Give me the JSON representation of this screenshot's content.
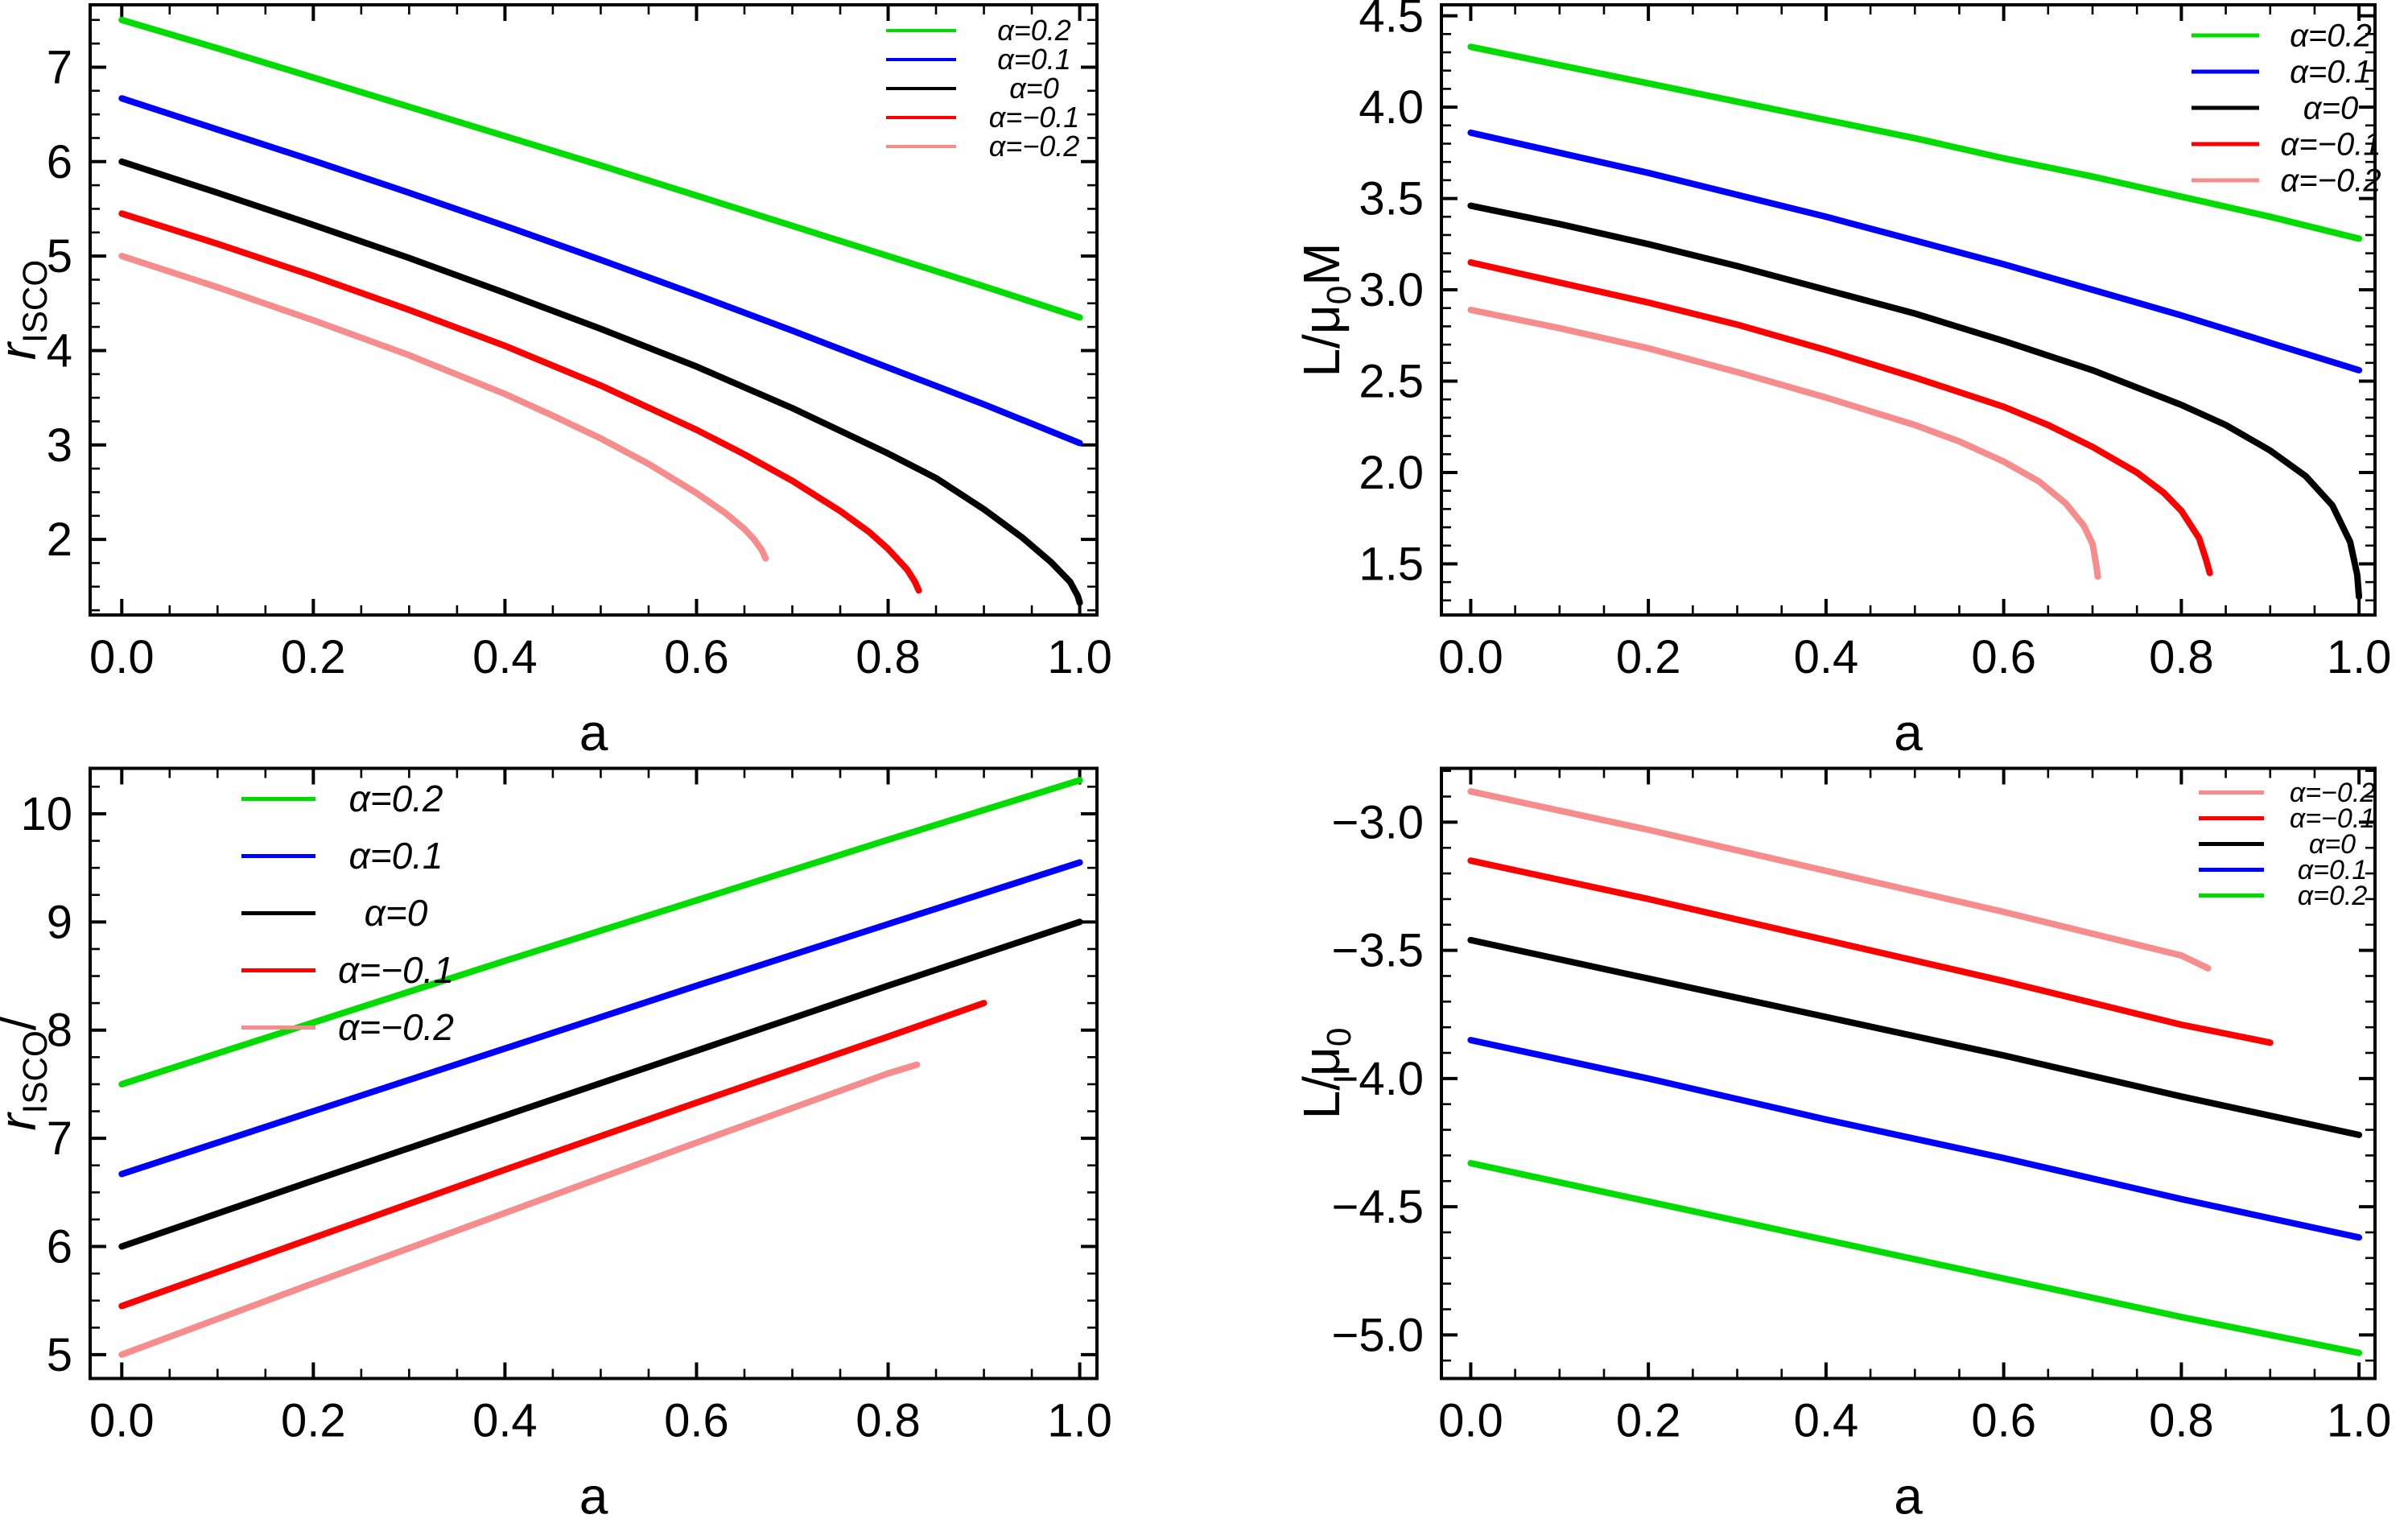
{
  "figure": {
    "background": "#ffffff",
    "frame_color": "#000000",
    "series_colors": {
      "alpha_plus_02": "#00dc00",
      "alpha_plus_01": "#0000ff",
      "alpha_zero": "#000000",
      "alpha_minus_01": "#fe0000",
      "alpha_minus_02": "#f68c8c"
    }
  },
  "chart_data": [
    {
      "id": "tl",
      "type": "line",
      "title": "",
      "xlabel": "a",
      "ylabel_segments": [
        {
          "t": "r",
          "it": true
        },
        {
          "t": "ISCO",
          "sub": true
        }
      ],
      "xlim": [
        -0.033,
        1.018
      ],
      "ylim": [
        1.2,
        7.66
      ],
      "grid": false,
      "xticks": [
        0,
        0.2,
        0.4,
        0.6,
        0.8,
        1.0
      ],
      "xtick_labels": [
        "0.0",
        "0.2",
        "0.4",
        "0.6",
        "0.8",
        "1.0"
      ],
      "yticks": [
        2,
        3,
        4,
        5,
        6,
        7
      ],
      "ytick_labels": [
        "2",
        "3",
        "4",
        "5",
        "6",
        "7"
      ],
      "x_minor_step": 0.05,
      "y_minor_step": 0.25,
      "legend": {
        "position": "top-right"
      },
      "series": [
        {
          "name": "α=0.2",
          "color": "#00dc00",
          "points": [
            [
              0,
              7.5
            ],
            [
              0.1,
              7.2
            ],
            [
              0.2,
              6.89
            ],
            [
              0.3,
              6.58
            ],
            [
              0.4,
              6.27
            ],
            [
              0.5,
              5.96
            ],
            [
              0.6,
              5.64
            ],
            [
              0.7,
              5.32
            ],
            [
              0.8,
              5.0
            ],
            [
              0.9,
              4.68
            ],
            [
              1.0,
              4.35
            ]
          ]
        },
        {
          "name": "α=0.1",
          "color": "#0000ff",
          "points": [
            [
              0,
              6.67
            ],
            [
              0.1,
              6.34
            ],
            [
              0.2,
              6.01
            ],
            [
              0.3,
              5.67
            ],
            [
              0.4,
              5.32
            ],
            [
              0.5,
              4.96
            ],
            [
              0.6,
              4.59
            ],
            [
              0.7,
              4.21
            ],
            [
              0.8,
              3.82
            ],
            [
              0.9,
              3.43
            ],
            [
              1.0,
              3.02
            ]
          ]
        },
        {
          "name": "α=0",
          "color": "#000000",
          "points": [
            [
              0,
              6.0
            ],
            [
              0.1,
              5.67
            ],
            [
              0.2,
              5.33
            ],
            [
              0.3,
              4.98
            ],
            [
              0.4,
              4.61
            ],
            [
              0.5,
              4.23
            ],
            [
              0.6,
              3.83
            ],
            [
              0.7,
              3.39
            ],
            [
              0.8,
              2.91
            ],
            [
              0.85,
              2.65
            ],
            [
              0.9,
              2.32
            ],
            [
              0.94,
              2.02
            ],
            [
              0.97,
              1.76
            ],
            [
              0.99,
              1.55
            ],
            [
              0.998,
              1.4
            ],
            [
              1.0,
              1.33
            ]
          ]
        },
        {
          "name": "α=−0.1",
          "color": "#fe0000",
          "points": [
            [
              0,
              5.45
            ],
            [
              0.1,
              5.13
            ],
            [
              0.2,
              4.79
            ],
            [
              0.3,
              4.43
            ],
            [
              0.4,
              4.05
            ],
            [
              0.5,
              3.63
            ],
            [
              0.6,
              3.16
            ],
            [
              0.65,
              2.9
            ],
            [
              0.7,
              2.62
            ],
            [
              0.75,
              2.3
            ],
            [
              0.78,
              2.08
            ],
            [
              0.8,
              1.9
            ],
            [
              0.82,
              1.68
            ],
            [
              0.828,
              1.55
            ],
            [
              0.832,
              1.46
            ]
          ]
        },
        {
          "name": "α=−0.2",
          "color": "#f68c8c",
          "points": [
            [
              0,
              5.0
            ],
            [
              0.1,
              4.67
            ],
            [
              0.2,
              4.32
            ],
            [
              0.3,
              3.95
            ],
            [
              0.4,
              3.54
            ],
            [
              0.45,
              3.31
            ],
            [
              0.5,
              3.07
            ],
            [
              0.55,
              2.8
            ],
            [
              0.6,
              2.49
            ],
            [
              0.63,
              2.28
            ],
            [
              0.65,
              2.11
            ],
            [
              0.66,
              2.0
            ],
            [
              0.668,
              1.89
            ],
            [
              0.672,
              1.8
            ]
          ]
        }
      ]
    },
    {
      "id": "tr",
      "type": "line",
      "title": "",
      "xlabel": "a",
      "ylabel_segments": [
        {
          "t": "L/μ"
        },
        {
          "t": "0",
          "sub": true
        },
        {
          "t": "M"
        }
      ],
      "xlim": [
        -0.033,
        1.018
      ],
      "ylim": [
        1.22,
        4.56
      ],
      "grid": false,
      "xticks": [
        0,
        0.2,
        0.4,
        0.6,
        0.8,
        1.0
      ],
      "xtick_labels": [
        "0.0",
        "0.2",
        "0.4",
        "0.6",
        "0.8",
        "1.0"
      ],
      "yticks": [
        1.5,
        2.0,
        2.5,
        3.0,
        3.5,
        4.0,
        4.5
      ],
      "ytick_labels": [
        "1.5",
        "2.0",
        "2.5",
        "3.0",
        "3.5",
        "4.0",
        "4.5"
      ],
      "x_minor_step": 0.05,
      "y_minor_step": 0.1,
      "legend": {
        "position": "top-right"
      },
      "series": [
        {
          "name": "α=0.2",
          "color": "#00dc00",
          "points": [
            [
              0,
              4.33
            ],
            [
              0.1,
              4.23
            ],
            [
              0.2,
              4.13
            ],
            [
              0.3,
              4.03
            ],
            [
              0.4,
              3.93
            ],
            [
              0.5,
              3.83
            ],
            [
              0.6,
              3.72
            ],
            [
              0.7,
              3.62
            ],
            [
              0.8,
              3.51
            ],
            [
              0.9,
              3.4
            ],
            [
              1.0,
              3.28
            ]
          ]
        },
        {
          "name": "α=0.1",
          "color": "#0000ff",
          "points": [
            [
              0,
              3.86
            ],
            [
              0.1,
              3.75
            ],
            [
              0.2,
              3.64
            ],
            [
              0.3,
              3.52
            ],
            [
              0.4,
              3.4
            ],
            [
              0.5,
              3.27
            ],
            [
              0.6,
              3.14
            ],
            [
              0.7,
              3.0
            ],
            [
              0.8,
              2.86
            ],
            [
              0.9,
              2.71
            ],
            [
              1.0,
              2.56
            ]
          ]
        },
        {
          "name": "α=0",
          "color": "#000000",
          "points": [
            [
              0,
              3.46
            ],
            [
              0.1,
              3.36
            ],
            [
              0.2,
              3.25
            ],
            [
              0.3,
              3.13
            ],
            [
              0.4,
              3.0
            ],
            [
              0.5,
              2.87
            ],
            [
              0.6,
              2.72
            ],
            [
              0.7,
              2.56
            ],
            [
              0.8,
              2.37
            ],
            [
              0.85,
              2.26
            ],
            [
              0.9,
              2.12
            ],
            [
              0.94,
              1.98
            ],
            [
              0.97,
              1.82
            ],
            [
              0.99,
              1.62
            ],
            [
              0.998,
              1.44
            ],
            [
              1.0,
              1.32
            ]
          ]
        },
        {
          "name": "α=−0.1",
          "color": "#fe0000",
          "points": [
            [
              0,
              3.15
            ],
            [
              0.1,
              3.04
            ],
            [
              0.2,
              2.93
            ],
            [
              0.3,
              2.81
            ],
            [
              0.4,
              2.67
            ],
            [
              0.5,
              2.52
            ],
            [
              0.6,
              2.36
            ],
            [
              0.65,
              2.26
            ],
            [
              0.7,
              2.14
            ],
            [
              0.75,
              2.0
            ],
            [
              0.78,
              1.89
            ],
            [
              0.8,
              1.79
            ],
            [
              0.82,
              1.64
            ],
            [
              0.828,
              1.52
            ],
            [
              0.832,
              1.45
            ]
          ]
        },
        {
          "name": "α=−0.2",
          "color": "#f68c8c",
          "points": [
            [
              0,
              2.89
            ],
            [
              0.1,
              2.79
            ],
            [
              0.2,
              2.68
            ],
            [
              0.3,
              2.55
            ],
            [
              0.4,
              2.41
            ],
            [
              0.5,
              2.26
            ],
            [
              0.55,
              2.17
            ],
            [
              0.6,
              2.06
            ],
            [
              0.64,
              1.95
            ],
            [
              0.67,
              1.83
            ],
            [
              0.69,
              1.71
            ],
            [
              0.7,
              1.61
            ],
            [
              0.704,
              1.5
            ],
            [
              0.706,
              1.43
            ]
          ]
        }
      ]
    },
    {
      "id": "bl",
      "type": "line",
      "title": "",
      "xlabel": "a",
      "ylabel_segments": [
        {
          "t": "r",
          "it": true
        },
        {
          "t": "ISCO",
          "sub": true
        },
        {
          "t": "/"
        }
      ],
      "xlim": [
        -0.033,
        1.018
      ],
      "ylim": [
        4.78,
        10.42
      ],
      "grid": false,
      "xticks": [
        0,
        0.2,
        0.4,
        0.6,
        0.8,
        1.0
      ],
      "xtick_labels": [
        "0.0",
        "0.2",
        "0.4",
        "0.6",
        "0.8",
        "1.0"
      ],
      "yticks": [
        5,
        6,
        7,
        8,
        9,
        10
      ],
      "ytick_labels": [
        "5",
        "6",
        "7",
        "8",
        "9",
        "10"
      ],
      "x_minor_step": 0.05,
      "y_minor_step": 0.25,
      "legend": {
        "position": "top-left"
      },
      "series": [
        {
          "name": "α=0.2",
          "color": "#00dc00",
          "points": [
            [
              0,
              7.5
            ],
            [
              0.2,
              8.07
            ],
            [
              0.4,
              8.64
            ],
            [
              0.6,
              9.2
            ],
            [
              0.8,
              9.76
            ],
            [
              1.0,
              10.31
            ]
          ]
        },
        {
          "name": "α=0.1",
          "color": "#0000ff",
          "points": [
            [
              0,
              6.67
            ],
            [
              0.2,
              7.25
            ],
            [
              0.4,
              7.83
            ],
            [
              0.6,
              8.41
            ],
            [
              0.8,
              8.98
            ],
            [
              1.0,
              9.55
            ]
          ]
        },
        {
          "name": "α=0",
          "color": "#000000",
          "points": [
            [
              0,
              6.0
            ],
            [
              0.2,
              6.61
            ],
            [
              0.4,
              7.21
            ],
            [
              0.6,
              7.81
            ],
            [
              0.8,
              8.41
            ],
            [
              1.0,
              9.0
            ]
          ]
        },
        {
          "name": "α=−0.1",
          "color": "#fe0000",
          "points": [
            [
              0,
              5.45
            ],
            [
              0.2,
              6.08
            ],
            [
              0.4,
              6.71
            ],
            [
              0.6,
              7.33
            ],
            [
              0.8,
              7.94
            ],
            [
              0.9,
              8.25
            ]
          ]
        },
        {
          "name": "α=−0.2",
          "color": "#f68c8c",
          "points": [
            [
              0,
              5.0
            ],
            [
              0.2,
              5.66
            ],
            [
              0.4,
              6.31
            ],
            [
              0.6,
              6.96
            ],
            [
              0.8,
              7.6
            ],
            [
              0.83,
              7.68
            ]
          ]
        }
      ]
    },
    {
      "id": "br",
      "type": "line",
      "title": "",
      "xlabel": "a",
      "ylabel_segments": [
        {
          "t": "L/μ"
        },
        {
          "t": "0",
          "sub": true
        }
      ],
      "xlim": [
        -0.033,
        1.018
      ],
      "ylim": [
        -5.17,
        -2.79
      ],
      "grid": false,
      "xticks": [
        0,
        0.2,
        0.4,
        0.6,
        0.8,
        1.0
      ],
      "xtick_labels": [
        "0.0",
        "0.2",
        "0.4",
        "0.6",
        "0.8",
        "1.0"
      ],
      "yticks": [
        -3.0,
        -3.5,
        -4.0,
        -4.5,
        -5.0
      ],
      "ytick_labels": [
        "−3.0",
        "−3.5",
        "−4.0",
        "−4.5",
        "−5.0"
      ],
      "x_minor_step": 0.05,
      "y_minor_step": 0.1,
      "legend": {
        "position": "top-right"
      },
      "series": [
        {
          "name": "α=−0.2",
          "color": "#f68c8c",
          "points": [
            [
              0,
              -2.88
            ],
            [
              0.2,
              -3.03
            ],
            [
              0.4,
              -3.19
            ],
            [
              0.6,
              -3.35
            ],
            [
              0.8,
              -3.52
            ],
            [
              0.83,
              -3.57
            ]
          ]
        },
        {
          "name": "α=−0.1",
          "color": "#fe0000",
          "points": [
            [
              0,
              -3.15
            ],
            [
              0.2,
              -3.3
            ],
            [
              0.4,
              -3.46
            ],
            [
              0.6,
              -3.62
            ],
            [
              0.8,
              -3.79
            ],
            [
              0.9,
              -3.86
            ]
          ]
        },
        {
          "name": "α=0",
          "color": "#000000",
          "points": [
            [
              0,
              -3.46
            ],
            [
              0.2,
              -3.61
            ],
            [
              0.4,
              -3.76
            ],
            [
              0.6,
              -3.91
            ],
            [
              0.8,
              -4.07
            ],
            [
              1.0,
              -4.22
            ]
          ]
        },
        {
          "name": "α=0.1",
          "color": "#0000ff",
          "points": [
            [
              0,
              -3.85
            ],
            [
              0.2,
              -4.0
            ],
            [
              0.4,
              -4.16
            ],
            [
              0.6,
              -4.31
            ],
            [
              0.8,
              -4.47
            ],
            [
              1.0,
              -4.62
            ]
          ]
        },
        {
          "name": "α=0.2",
          "color": "#00dc00",
          "points": [
            [
              0,
              -4.33
            ],
            [
              0.2,
              -4.48
            ],
            [
              0.4,
              -4.63
            ],
            [
              0.6,
              -4.78
            ],
            [
              0.8,
              -4.93
            ],
            [
              1.0,
              -5.07
            ]
          ]
        }
      ]
    }
  ]
}
